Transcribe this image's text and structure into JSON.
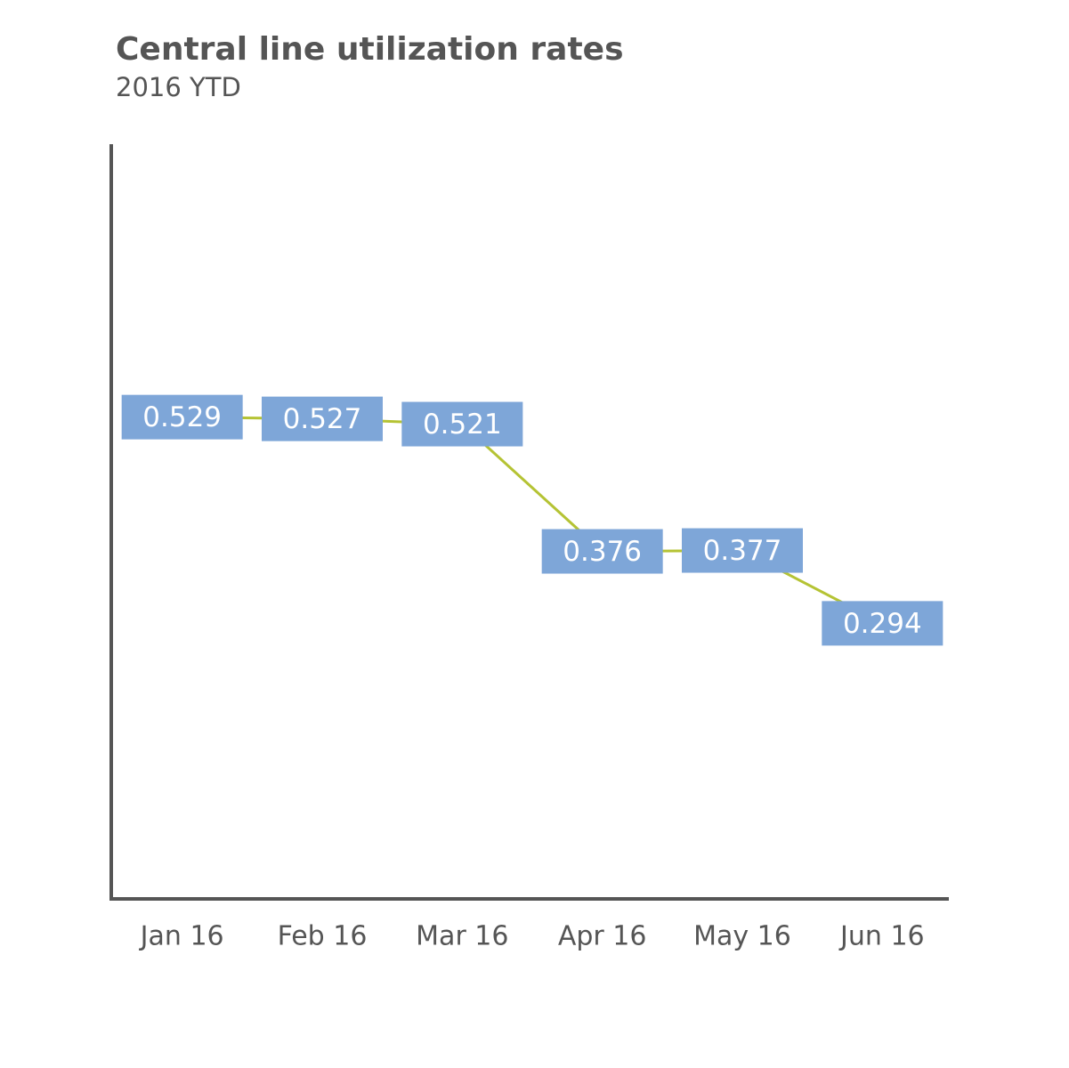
{
  "chart_data": {
    "type": "line",
    "title": "Central line utilization rates",
    "subtitle": "2016 YTD",
    "categories": [
      "Jan 16",
      "Feb 16",
      "Mar 16",
      "Apr 16",
      "May 16",
      "Jun 16"
    ],
    "values": [
      0.529,
      0.527,
      0.521,
      0.376,
      0.377,
      0.294
    ],
    "color": "#b5c334",
    "label_color": "#7ea6d8",
    "ylim": [
      -0.02,
      0.84
    ]
  }
}
